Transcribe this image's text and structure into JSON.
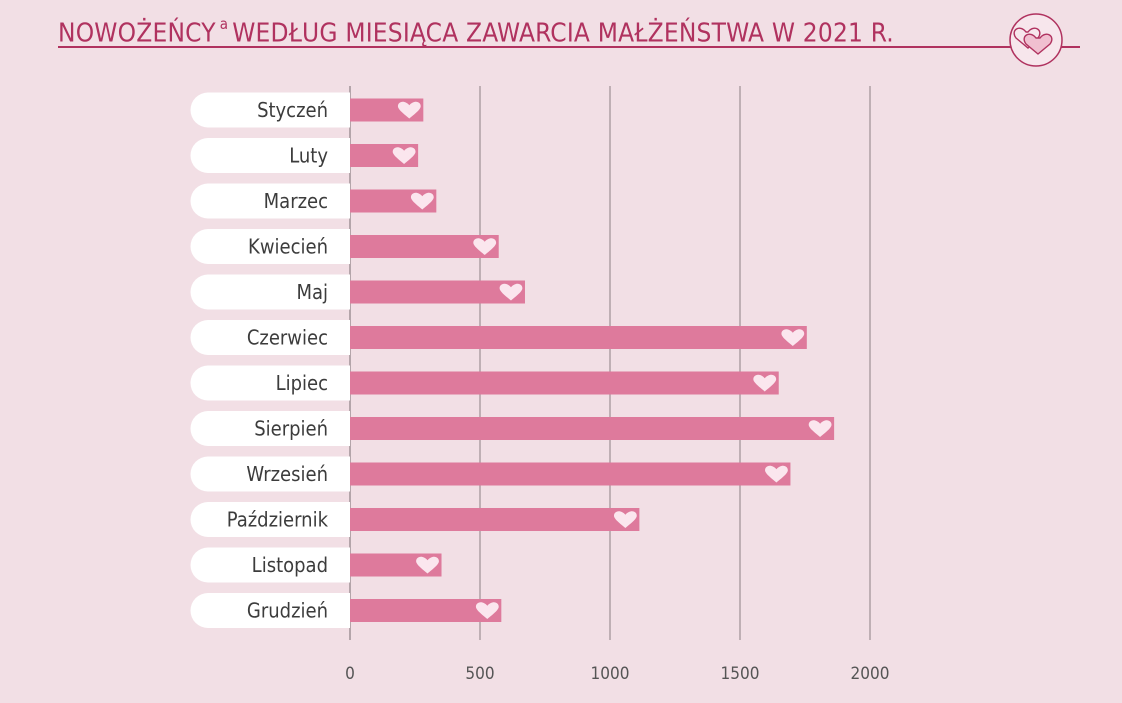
{
  "header": {
    "title_main": "NOWOŻEŃCY",
    "title_sup": "a",
    "title_rest": "WEDŁUG MIESIĄCA ZAWARCIA MAŁŻEŃSTWA W 2021 R."
  },
  "colors": {
    "background": "#f2dfe5",
    "bar": "#de7a9c",
    "heart": "#fbe6ee",
    "title": "#b0325f",
    "label_pill": "#ffffff",
    "grid": "#8c7f84"
  },
  "chart_data": {
    "type": "bar",
    "orientation": "horizontal",
    "title": "NOWOŻEŃCY a WEDŁUG MIESIĄCA ZAWARCIA MAŁŻEŃSTWA W 2021 R.",
    "categories": [
      "Styczeń",
      "Luty",
      "Marzec",
      "Kwiecień",
      "Maj",
      "Czerwiec",
      "Lipiec",
      "Sierpień",
      "Wrzesień",
      "Październik",
      "Listopad",
      "Grudzień"
    ],
    "values": [
      282,
      262,
      332,
      572,
      673,
      1757,
      1649,
      1862,
      1694,
      1113,
      352,
      582
    ],
    "xlim": [
      0,
      2000
    ],
    "xticks": [
      "0",
      "500",
      "1000",
      "1500",
      "2000"
    ],
    "grid": "vertical",
    "legend": "none"
  }
}
